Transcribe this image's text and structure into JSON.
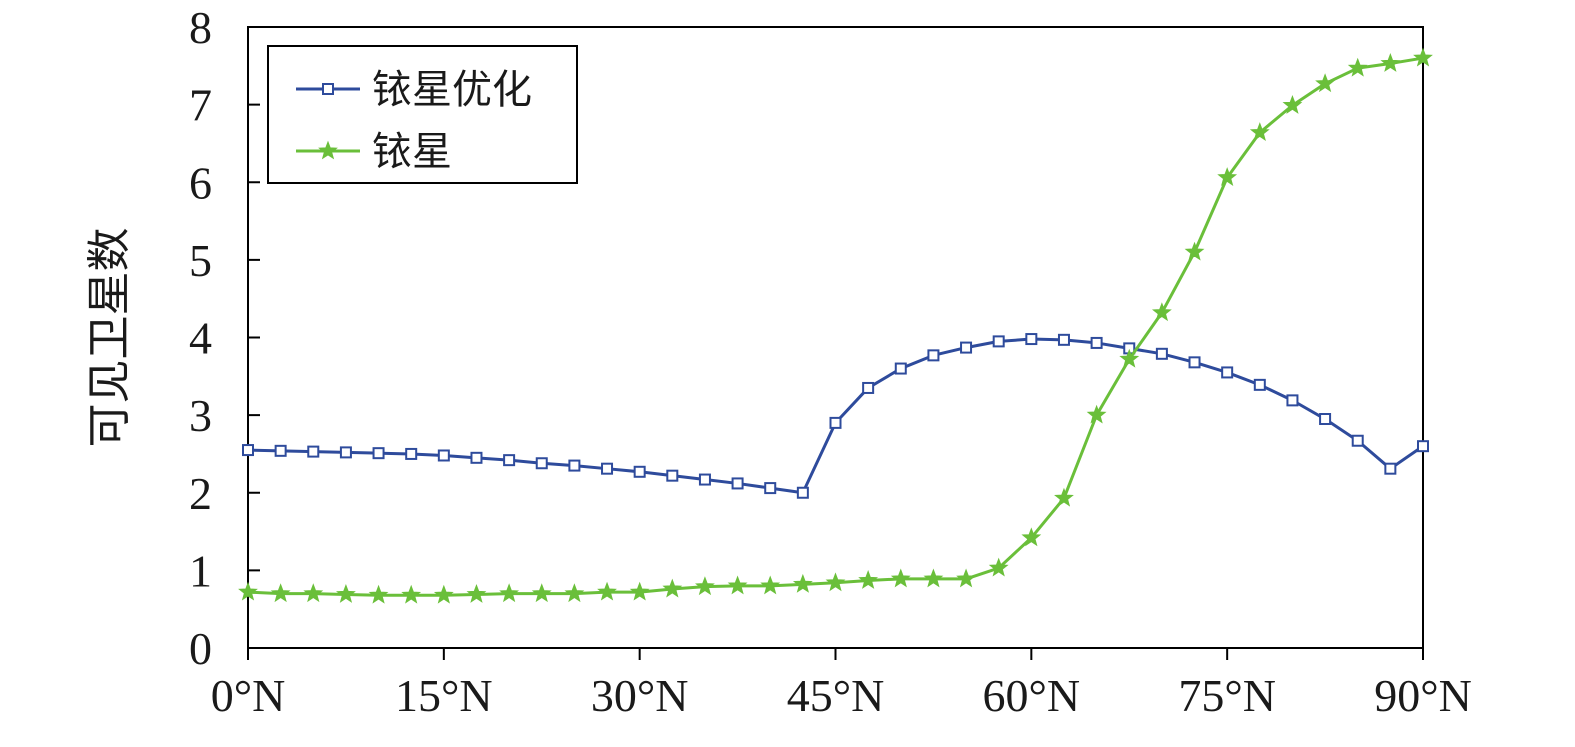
{
  "chart_data": {
    "type": "line",
    "xlabel": "",
    "ylabel": "可见卫星数",
    "x": [
      0,
      2.5,
      5,
      7.5,
      10,
      12.5,
      15,
      17.5,
      20,
      22.5,
      25,
      27.5,
      30,
      32.5,
      35,
      37.5,
      40,
      42.5,
      45,
      47.5,
      50,
      52.5,
      55,
      57.5,
      60,
      62.5,
      65,
      67.5,
      70,
      72.5,
      75,
      77.5,
      80,
      82.5,
      85,
      87.5,
      90
    ],
    "xlim": [
      0,
      90
    ],
    "ylim": [
      0,
      8
    ],
    "xticks": [
      0,
      15,
      30,
      45,
      60,
      75,
      90
    ],
    "xtick_labels": [
      "0°N",
      "15°N",
      "30°N",
      "45°N",
      "60°N",
      "75°N",
      "90°N"
    ],
    "yticks": [
      0,
      1,
      2,
      3,
      4,
      5,
      6,
      7,
      8
    ],
    "ytick_labels": [
      "0",
      "1",
      "2",
      "3",
      "4",
      "5",
      "6",
      "7",
      "8"
    ],
    "legend_position": "top-left",
    "grid": false,
    "series": [
      {
        "name": "铱星优化",
        "color": "#2e4b9c",
        "marker": "square",
        "values": [
          2.55,
          2.54,
          2.53,
          2.52,
          2.51,
          2.5,
          2.48,
          2.45,
          2.42,
          2.38,
          2.35,
          2.31,
          2.27,
          2.22,
          2.17,
          2.12,
          2.06,
          2.0,
          2.9,
          3.35,
          3.6,
          3.77,
          3.87,
          3.95,
          3.98,
          3.97,
          3.93,
          3.86,
          3.79,
          3.68,
          3.55,
          3.39,
          3.19,
          2.95,
          2.67,
          2.31,
          2.6
        ]
      },
      {
        "name": "铱星",
        "color": "#6abf3a",
        "marker": "star",
        "values": [
          0.72,
          0.7,
          0.7,
          0.69,
          0.68,
          0.68,
          0.68,
          0.69,
          0.7,
          0.7,
          0.7,
          0.72,
          0.72,
          0.76,
          0.79,
          0.8,
          0.8,
          0.82,
          0.84,
          0.87,
          0.89,
          0.89,
          0.89,
          1.03,
          1.42,
          1.93,
          3.0,
          3.72,
          4.32,
          5.1,
          6.06,
          6.64,
          6.99,
          7.27,
          7.47,
          7.53,
          7.6
        ]
      }
    ]
  }
}
